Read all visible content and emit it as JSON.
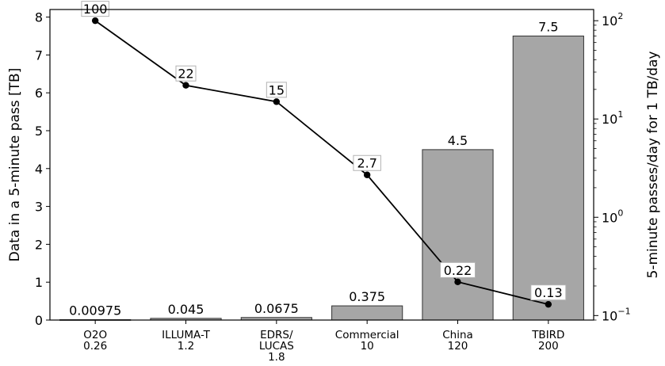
{
  "chart_data": {
    "type": "bar",
    "categories": [
      "O2O\n0.26",
      "ILLUMA-T\n1.2",
      "EDRS/\nLUCAS\n1.8",
      "Commercial\n10",
      "China\n120",
      "TBIRD\n200"
    ],
    "values": [
      0.00975,
      0.045,
      0.0675,
      0.375,
      4.5,
      7.5
    ],
    "bar_labels": [
      "0.00975",
      "0.045",
      "0.0675",
      "0.375",
      "4.5",
      "7.5"
    ],
    "ylabel": "Data in a 5-minute pass [TB]",
    "ylim": [
      0,
      8.2
    ],
    "yticks": [
      0,
      1,
      2,
      3,
      4,
      5,
      6,
      7,
      8
    ],
    "bar_color": "#a6a6a6",
    "secondary": {
      "type": "line",
      "ylabel": "5-minute passes/day for 1 TB/day",
      "scale": "log",
      "ylim": [
        0.09,
        130
      ],
      "yticks": [
        0.1,
        1,
        10,
        100
      ],
      "ytick_labels": [
        {
          "base": "10",
          "exp": "−1"
        },
        {
          "base": "10",
          "exp": "0"
        },
        {
          "base": "10",
          "exp": "1"
        },
        {
          "base": "10",
          "exp": "2"
        }
      ],
      "values": [
        100,
        22,
        15,
        2.7,
        0.22,
        0.13
      ],
      "point_labels": [
        "100",
        "22",
        "15",
        "2.7",
        "0.22",
        "0.13"
      ],
      "line_color": "#000000"
    },
    "grid": false,
    "legend": null
  }
}
